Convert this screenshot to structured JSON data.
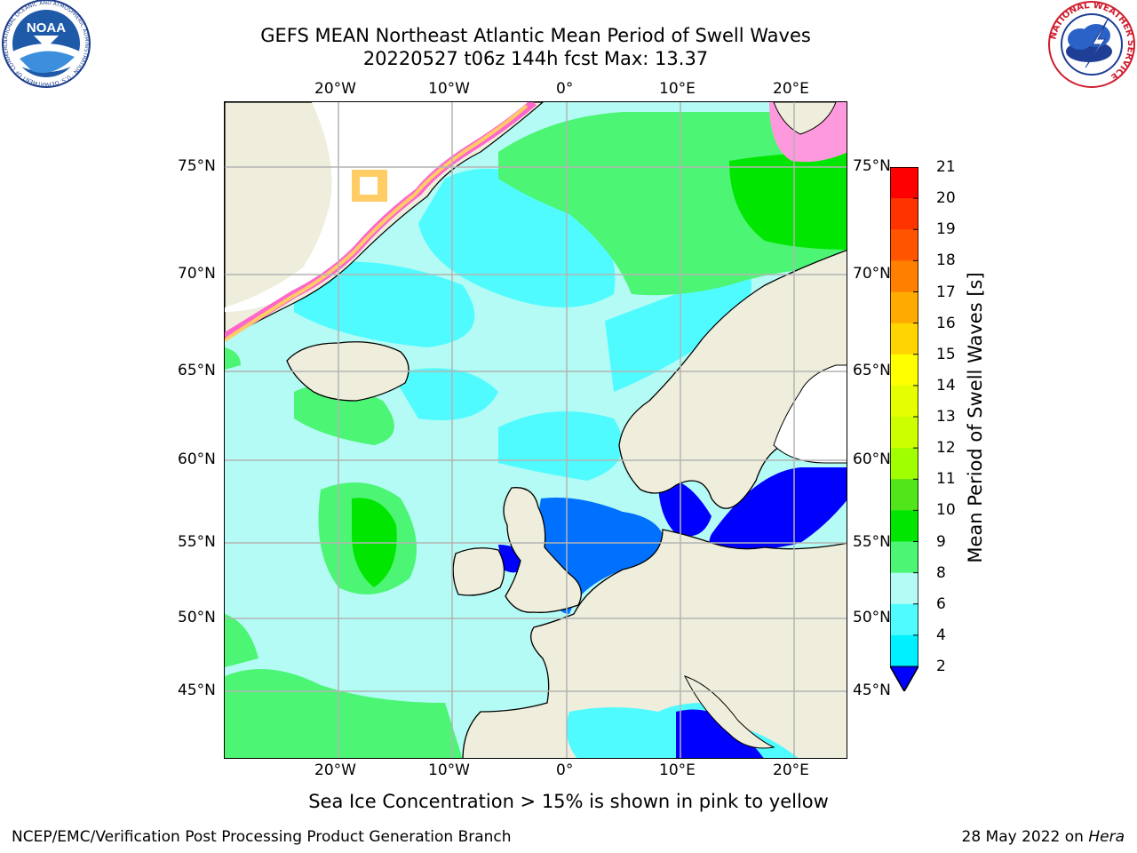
{
  "title": {
    "line1": "GEFS MEAN Northeast Atlantic Mean Period of Swell Waves",
    "line2": "20220527 t06z 144h fcst   Max: 13.37"
  },
  "axes": {
    "lon_labels": [
      "20°W",
      "10°W",
      "0°",
      "10°E",
      "20°E"
    ],
    "lat_labels": [
      "75°N",
      "70°N",
      "65°N",
      "60°N",
      "55°N",
      "50°N",
      "45°N"
    ]
  },
  "colorbar": {
    "label": "Mean Period of Swell Waves [s]",
    "ticks": [
      "21",
      "20",
      "19",
      "18",
      "17",
      "16",
      "15",
      "14",
      "13",
      "12",
      "11",
      "10",
      "9",
      "8",
      "6",
      "4",
      "2"
    ],
    "colors": [
      "#ff0000",
      "#ff3300",
      "#ff5500",
      "#ff7f00",
      "#ffaa00",
      "#ffd400",
      "#ffff00",
      "#e6ff00",
      "#ccff00",
      "#a0ff00",
      "#50e61a",
      "#00e600",
      "#4cf574",
      "#b3fbf4",
      "#50fbff",
      "#00f0ff",
      "#0070ff"
    ],
    "under_color": "#0000ff"
  },
  "map": {
    "land_color": "#efeddb",
    "ice_colors": [
      "#ff66cc",
      "#ffcc66"
    ],
    "ocean_colors": {
      "light": "#b3fbf4",
      "cyan": "#50fbff",
      "green": "#4cf574",
      "bright_green": "#00e600",
      "blue": "#0070ff",
      "deep_blue": "#0000ff"
    }
  },
  "note": "Sea Ice Concentration > 15% is shown in pink to yellow",
  "footer": {
    "left": "NCEP/EMC/Verification Post Processing Product Generation Branch",
    "date": "28 May 2022 on",
    "machine": "Hera"
  },
  "logos": {
    "noaa": "NOAA",
    "noaa_ring": "NATIONAL OCEANIC AND ATMOSPHERIC ADMINISTRATION · U.S. DEPARTMENT OF COMMERCE",
    "nws_ring": "NATIONAL WEATHER SERVICE"
  }
}
